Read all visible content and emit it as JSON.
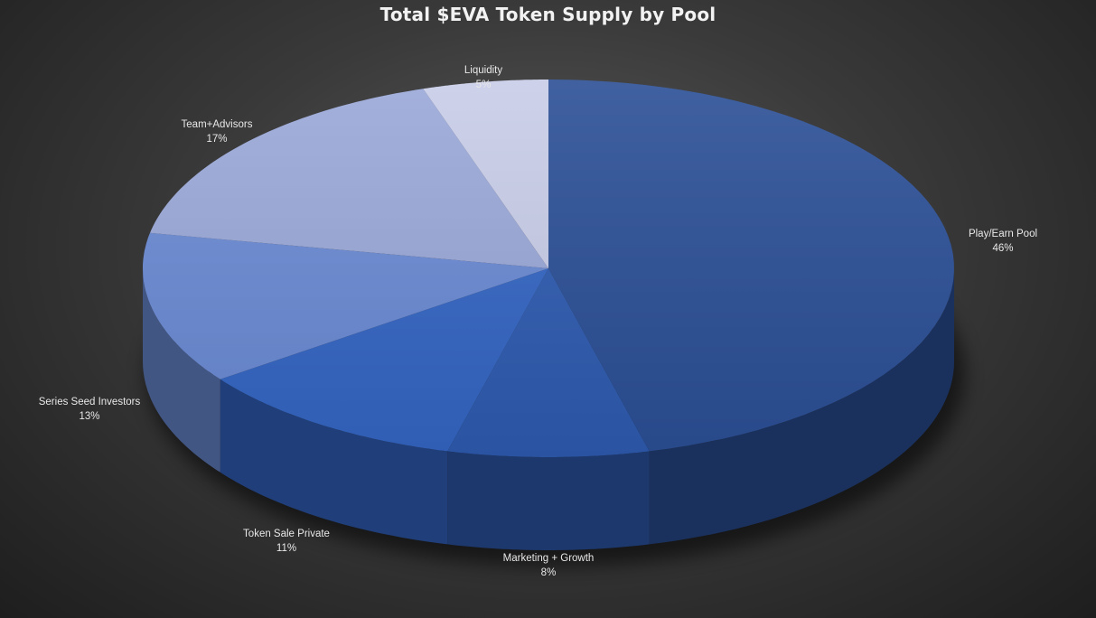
{
  "chart_data": {
    "type": "pie",
    "title": "Total $EVA Token Supply by Pool",
    "slices": [
      {
        "name": "Play/Earn Pool",
        "value": 46,
        "label": "46%",
        "color": "#2b4f96"
      },
      {
        "name": "Marketing + Growth",
        "value": 8,
        "label": "8%",
        "color": "#2e5bb0"
      },
      {
        "name": "Token Sale Private",
        "value": 11,
        "label": "11%",
        "color": "#3466c4"
      },
      {
        "name": "Series Seed Investors",
        "value": 13,
        "label": "13%",
        "color": "#6a8ad4"
      },
      {
        "name": "Team+Advisors",
        "value": 17,
        "label": "17%",
        "color": "#9aa8d8"
      },
      {
        "name": "Liquidity",
        "value": 5,
        "label": "5%",
        "color": "#c8cde8"
      }
    ]
  }
}
